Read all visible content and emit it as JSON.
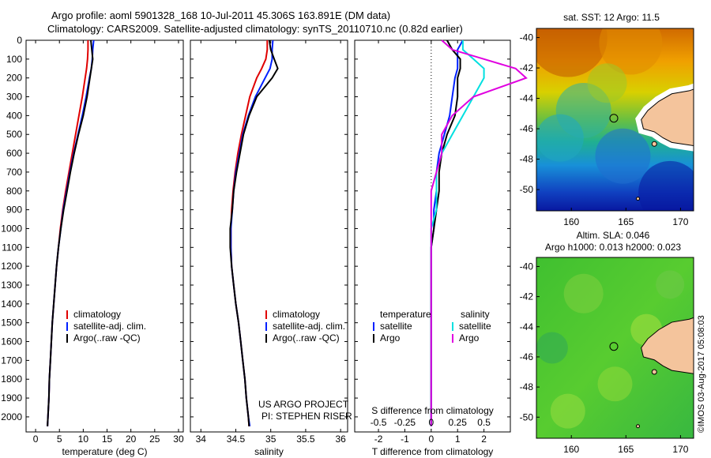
{
  "header": {
    "title_line1": "Argo profile: aoml 5901328_168 10-Jul-2011 45.306S 163.891E (DM data)",
    "title_line2": "Climatology: CARS2009. Satellite-adjusted climatology: synTS_20110710.nc (0.82d earlier)"
  },
  "footer": {
    "project_line1": "US ARGO PROJECT",
    "project_line2": "PI: STEPHEN RISER",
    "copyright": "©IMOS 03-Aug-2017 05:08:03"
  },
  "colors": {
    "climatology": "#e00000",
    "satellite": "#0020ff",
    "argo": "#000000",
    "sal_satellite": "#00e0e0",
    "sal_argo": "#e000e0"
  },
  "chart_data": [
    {
      "type": "line",
      "name": "temperature-profile",
      "xlabel": "temperature (deg C)",
      "ylabel": "",
      "xlim": [
        -2,
        31
      ],
      "ylim": [
        2080,
        0
      ],
      "x_ticks": [
        0,
        5,
        10,
        15,
        20,
        25,
        30
      ],
      "y_ticks": [
        0,
        100,
        200,
        300,
        400,
        500,
        600,
        700,
        800,
        900,
        1000,
        1100,
        1200,
        1300,
        1400,
        1500,
        1600,
        1700,
        1800,
        1900,
        2000
      ],
      "depth": [
        0,
        50,
        100,
        150,
        200,
        300,
        400,
        500,
        600,
        700,
        800,
        900,
        1000,
        1100,
        1200,
        1300,
        1400,
        1500,
        1600,
        1700,
        1800,
        1900,
        2000,
        2050
      ],
      "series": [
        {
          "name": "climatology",
          "values": [
            11.0,
            11.0,
            10.9,
            10.7,
            10.4,
            9.8,
            9.1,
            8.4,
            7.7,
            7.0,
            6.3,
            5.7,
            5.2,
            4.8,
            4.4,
            4.1,
            3.8,
            3.5,
            3.3,
            3.1,
            2.9,
            2.8,
            2.6,
            2.5
          ]
        },
        {
          "name": "satellite-adj. clim.",
          "values": [
            12.2,
            12.0,
            11.9,
            11.7,
            11.3,
            10.6,
            9.8,
            8.9,
            8.0,
            7.2,
            6.5,
            5.8,
            5.3,
            4.8,
            4.4,
            4.1,
            3.8,
            3.5,
            3.3,
            3.1,
            2.9,
            2.8,
            2.6,
            2.5
          ]
        },
        {
          "name": "Argo(..raw -QC)",
          "values": [
            11.6,
            11.8,
            12.0,
            11.7,
            11.4,
            10.8,
            10.0,
            9.0,
            8.1,
            7.3,
            6.6,
            5.9,
            5.3,
            4.8,
            4.4,
            4.1,
            3.8,
            3.5,
            3.3,
            3.1,
            2.9,
            2.8,
            2.6,
            2.5
          ]
        }
      ],
      "legend": [
        "climatology",
        "satellite-adj. clim.",
        "Argo(..raw -QC)"
      ],
      "legend_position": "lower-right"
    },
    {
      "type": "line",
      "name": "salinity-profile",
      "xlabel": "salinity",
      "ylabel": "",
      "xlim": [
        33.85,
        36.1
      ],
      "ylim": [
        2080,
        0
      ],
      "x_ticks": [
        34,
        34.5,
        35,
        35.5,
        36
      ],
      "x_tick_labels": [
        "34",
        "34.5",
        "35",
        "35.5",
        "36"
      ],
      "depth": [
        0,
        50,
        100,
        150,
        200,
        300,
        400,
        500,
        600,
        700,
        800,
        900,
        1000,
        1100,
        1200,
        1300,
        1400,
        1500,
        1600,
        1700,
        1800,
        1900,
        2000,
        2050
      ],
      "series": [
        {
          "name": "climatology",
          "values": [
            34.95,
            34.95,
            34.93,
            34.87,
            34.8,
            34.7,
            34.64,
            34.58,
            34.53,
            34.49,
            34.46,
            34.44,
            34.43,
            34.43,
            34.44,
            34.47,
            34.5,
            34.54,
            34.57,
            34.6,
            34.63,
            34.65,
            34.68,
            34.69
          ]
        },
        {
          "name": "satellite-adj. clim.",
          "values": [
            35.03,
            35.02,
            35.02,
            34.99,
            34.92,
            34.78,
            34.68,
            34.6,
            34.55,
            34.5,
            34.47,
            34.45,
            34.43,
            34.43,
            34.44,
            34.47,
            34.5,
            34.54,
            34.57,
            34.6,
            34.63,
            34.65,
            34.68,
            34.7
          ]
        },
        {
          "name": "Argo(..raw -QC)",
          "values": [
            34.98,
            35.0,
            35.05,
            35.1,
            35.02,
            34.8,
            34.69,
            34.61,
            34.56,
            34.51,
            34.47,
            34.45,
            34.42,
            34.42,
            34.44,
            34.47,
            34.5,
            34.54,
            34.57,
            34.6,
            34.63,
            34.65,
            34.68,
            34.69
          ]
        }
      ],
      "legend": [
        "climatology",
        "satellite-adj. clim.",
        "Argo(..raw -QC)"
      ],
      "legend_position": "lower-right"
    },
    {
      "type": "line",
      "name": "difference-profile",
      "xlabel": "T difference from climatology",
      "top_axis_label": "S difference from climatology",
      "xlim": [
        -2.9,
        3.0
      ],
      "ylim": [
        2080,
        0
      ],
      "x_ticks": [
        -2,
        -1,
        0,
        1,
        2
      ],
      "top_x_ticks": [
        -0.5,
        -0.25,
        0,
        0.25,
        0.5
      ],
      "top_x_tick_labels": [
        "-0.5",
        "-0.25",
        "0",
        "0.25",
        "0.5"
      ],
      "zero_line": "dotted",
      "depth": [
        0,
        50,
        100,
        150,
        200,
        300,
        400,
        500,
        600,
        700,
        800,
        900,
        1000,
        1100,
        1200,
        1300,
        1400,
        1500,
        1600,
        1700,
        1800,
        1900,
        2000,
        2050
      ],
      "series": [
        {
          "name": "temperature satellite",
          "values": [
            1.2,
            1.0,
            1.0,
            1.0,
            0.9,
            0.8,
            0.7,
            0.5,
            0.3,
            0.2,
            0.2,
            0.1,
            0.1,
            0.0,
            0.0,
            0.0,
            0.0,
            0.0,
            0.0,
            0.0,
            0.0,
            0.0,
            0.0,
            0.0
          ]
        },
        {
          "name": "temperature Argo",
          "values": [
            0.6,
            0.8,
            1.1,
            1.1,
            1.0,
            1.0,
            0.9,
            0.6,
            0.4,
            0.3,
            0.3,
            0.2,
            0.1,
            0.0,
            0.0,
            0.0,
            0.0,
            0.0,
            0.0,
            0.0,
            0.0,
            0.0,
            0.0,
            0.0
          ]
        },
        {
          "name": "salinity satellite",
          "values": [
            0.3,
            0.3,
            0.4,
            0.5,
            0.5,
            0.4,
            0.3,
            0.2,
            0.1,
            0.05,
            0.05,
            0.05,
            0.0,
            0.0,
            0.0,
            0.0,
            0.0,
            0.0,
            0.0,
            0.0,
            0.0,
            0.0,
            0.0,
            0.0
          ]
        },
        {
          "name": "salinity Argo",
          "values": [
            0.1,
            0.2,
            0.5,
            0.8,
            0.9,
            0.4,
            0.2,
            0.1,
            0.1,
            0.05,
            0.0,
            0.0,
            0.0,
            0.0,
            0.0,
            0.0,
            0.0,
            0.0,
            0.0,
            0.0,
            0.0,
            0.0,
            0.0,
            0.0
          ]
        }
      ],
      "legend_groups": [
        {
          "heading": "temperature",
          "items": [
            "satellite",
            "Argo"
          ]
        },
        {
          "heading": "salinity",
          "items": [
            "satellite",
            "Argo"
          ]
        }
      ],
      "legend_position": "lower-center"
    },
    {
      "type": "heatmap",
      "name": "sst-map",
      "title": "sat. SST: 12 Argo: 11.5",
      "xlim": [
        156.8,
        171.2
      ],
      "ylim": [
        -51.4,
        -39.4
      ],
      "x_ticks": [
        160,
        165,
        170
      ],
      "y_ticks": [
        -40,
        -42,
        -44,
        -46,
        -48,
        -50
      ],
      "float_position": [
        163.891,
        -45.306
      ]
    },
    {
      "type": "heatmap",
      "name": "sla-map",
      "title_line1": "Altim. SLA: 0.046",
      "title_line2": "Argo h1000: 0.013 h2000: 0.023",
      "xlim": [
        156.8,
        171.2
      ],
      "ylim": [
        -51.4,
        -39.4
      ],
      "x_ticks": [
        160,
        165,
        170
      ],
      "y_ticks": [
        -40,
        -42,
        -44,
        -46,
        -48,
        -50
      ],
      "float_position": [
        163.891,
        -45.306
      ]
    }
  ]
}
